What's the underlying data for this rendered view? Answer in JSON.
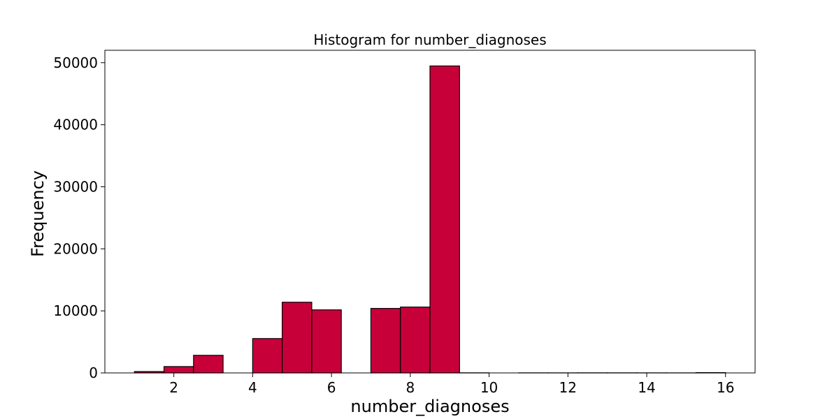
{
  "chart_data": {
    "type": "bar",
    "title": "Histogram for number_diagnoses",
    "xlabel": "number_diagnoses",
    "ylabel": "Frequency",
    "bar_color": "#c8003a",
    "edge_color": "#000000",
    "xlim": [
      0.25,
      16.75
    ],
    "ylim": [
      0,
      52000
    ],
    "xticks": [
      2,
      4,
      6,
      8,
      10,
      12,
      14,
      16
    ],
    "yticks": [
      0,
      10000,
      20000,
      30000,
      40000,
      50000
    ],
    "bins": [
      {
        "x0": 1.0,
        "x1": 1.75,
        "value": 219
      },
      {
        "x0": 1.75,
        "x1": 2.5,
        "value": 1023
      },
      {
        "x0": 2.5,
        "x1": 3.25,
        "value": 2835
      },
      {
        "x0": 3.25,
        "x1": 4.0,
        "value": 0
      },
      {
        "x0": 4.0,
        "x1": 4.75,
        "value": 5537
      },
      {
        "x0": 4.75,
        "x1": 5.5,
        "value": 11393
      },
      {
        "x0": 5.5,
        "x1": 6.25,
        "value": 10161
      },
      {
        "x0": 6.25,
        "x1": 7.0,
        "value": 0
      },
      {
        "x0": 7.0,
        "x1": 7.75,
        "value": 10393
      },
      {
        "x0": 7.75,
        "x1": 8.5,
        "value": 10616
      },
      {
        "x0": 8.5,
        "x1": 9.25,
        "value": 49474
      },
      {
        "x0": 9.25,
        "x1": 10.0,
        "value": 17
      },
      {
        "x0": 10.0,
        "x1": 10.75,
        "value": 0
      },
      {
        "x0": 10.75,
        "x1": 11.5,
        "value": 11
      },
      {
        "x0": 11.5,
        "x1": 12.25,
        "value": 9
      },
      {
        "x0": 12.25,
        "x1": 13.0,
        "value": 16
      },
      {
        "x0": 13.0,
        "x1": 13.75,
        "value": 14
      },
      {
        "x0": 13.75,
        "x1": 14.5,
        "value": 10
      },
      {
        "x0": 14.5,
        "x1": 15.25,
        "value": 7
      },
      {
        "x0": 15.25,
        "x1": 16.0,
        "value": 45
      }
    ],
    "grid": false,
    "legend": "none"
  }
}
